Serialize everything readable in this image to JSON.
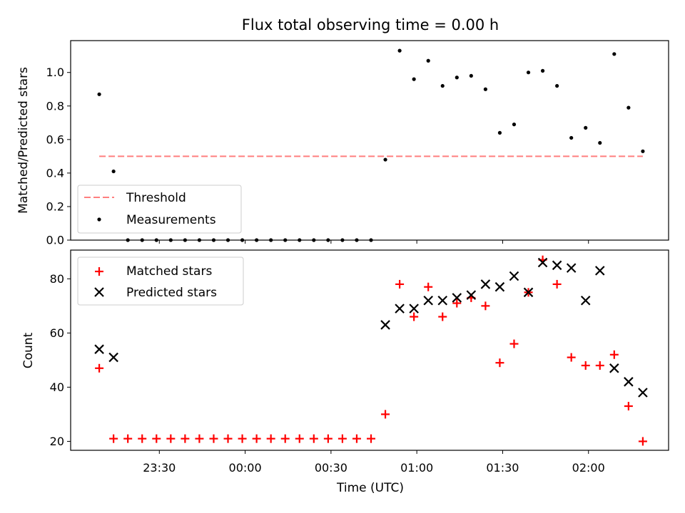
{
  "title": "Flux total observing time = 0.00 h",
  "colors": {
    "threshold": "#ff7f7f",
    "measurements": "#000000",
    "matched": "#ff0000",
    "predicted": "#000000"
  },
  "xaxis": {
    "label": "Time (UTC)",
    "ticks": [
      {
        "t": 0,
        "label": "23:30"
      },
      {
        "t": 30,
        "label": "00:00"
      },
      {
        "t": 60,
        "label": "00:30"
      },
      {
        "t": 90,
        "label": "01:00"
      },
      {
        "t": 120,
        "label": "01:30"
      },
      {
        "t": 150,
        "label": "02:00"
      }
    ],
    "range": [
      -31,
      178
    ]
  },
  "chart_data": [
    {
      "type": "scatter",
      "panel": "top",
      "ylabel": "Matched/Predicted stars",
      "ylim": [
        0,
        1.19
      ],
      "yticks": [
        "0.0",
        "0.2",
        "0.4",
        "0.6",
        "0.8",
        "1.0"
      ],
      "legend": {
        "placement": "lower-left",
        "entries": [
          "Threshold",
          "Measurements"
        ]
      },
      "threshold": {
        "name": "Threshold",
        "value": 0.5,
        "x_range": [
          -21,
          169
        ]
      },
      "series": [
        {
          "name": "Measurements",
          "marker": "dot",
          "x": [
            -21,
            -16,
            -11,
            -6,
            -1,
            4,
            9,
            14,
            19,
            24,
            29,
            34,
            39,
            44,
            49,
            54,
            59,
            64,
            69,
            74,
            79,
            84,
            89,
            94,
            99,
            104,
            109,
            114,
            119,
            124,
            129,
            134,
            139,
            144,
            149,
            154,
            159,
            164,
            169
          ],
          "values": [
            0.87,
            0.41,
            0,
            0,
            0,
            0,
            0,
            0,
            0,
            0,
            0,
            0,
            0,
            0,
            0,
            0,
            0,
            0,
            0,
            0,
            0.48,
            1.13,
            0.96,
            1.07,
            0.92,
            0.97,
            0.98,
            0.9,
            0.64,
            0.69,
            1.0,
            1.01,
            0.92,
            0.61,
            0.67,
            0.58,
            1.11,
            0.79,
            0.53
          ]
        }
      ]
    },
    {
      "type": "scatter",
      "panel": "bottom",
      "ylabel": "Count",
      "ylim": [
        16.7,
        90.6
      ],
      "yticks": [
        "20",
        "40",
        "60",
        "80"
      ],
      "legend": {
        "placement": "top-left",
        "entries": [
          "Matched stars",
          "Predicted stars"
        ]
      },
      "series": [
        {
          "name": "Matched stars",
          "marker": "plus",
          "x": [
            -21,
            -16,
            -11,
            -6,
            -1,
            4,
            9,
            14,
            19,
            24,
            29,
            34,
            39,
            44,
            49,
            54,
            59,
            64,
            69,
            74,
            79,
            84,
            89,
            94,
            99,
            104,
            109,
            114,
            119,
            124,
            129,
            134,
            139,
            144,
            149,
            154,
            159,
            164,
            169
          ],
          "values": [
            47,
            21,
            21,
            21,
            21,
            21,
            21,
            21,
            21,
            21,
            21,
            21,
            21,
            21,
            21,
            21,
            21,
            21,
            21,
            21,
            30,
            78,
            66,
            77,
            66,
            71,
            73,
            70,
            49,
            56,
            75,
            87,
            78,
            51,
            48,
            48,
            52,
            33,
            20
          ]
        },
        {
          "name": "Predicted stars",
          "marker": "x",
          "x": [
            -21,
            -16,
            79,
            84,
            89,
            94,
            99,
            104,
            109,
            114,
            119,
            124,
            129,
            134,
            139,
            144,
            149,
            154,
            159,
            164,
            169
          ],
          "values": [
            54,
            51,
            63,
            69,
            69,
            72,
            72,
            73,
            74,
            78,
            77,
            81,
            75,
            86,
            85,
            84,
            72,
            83,
            47,
            42,
            38
          ]
        }
      ]
    }
  ]
}
